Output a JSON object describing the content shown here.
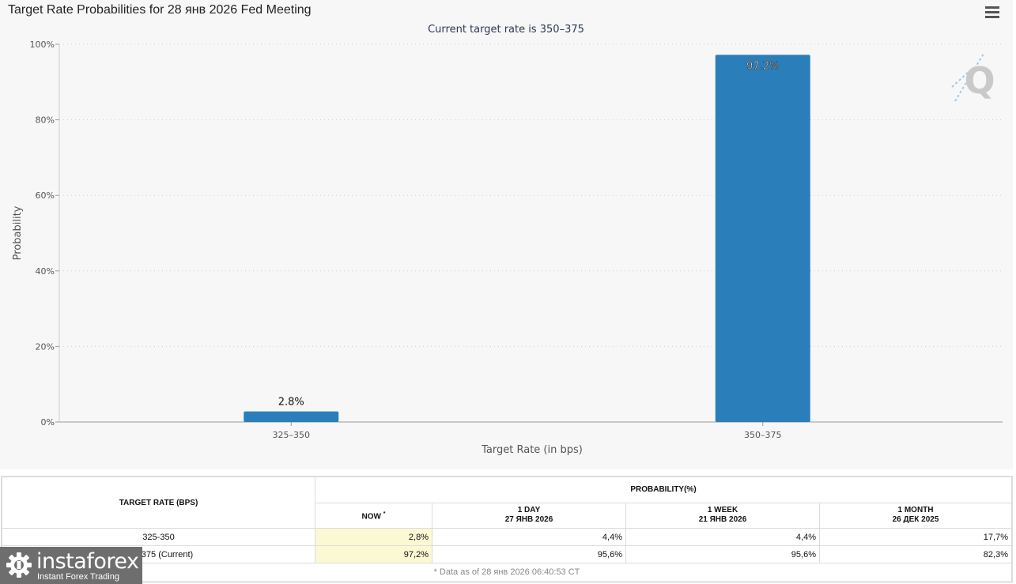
{
  "chart_data": {
    "type": "bar",
    "title": "Target Rate Probabilities for 28 янв 2026 Fed Meeting",
    "subtitle": "Current target rate is 350–375",
    "xlabel": "Target Rate (in bps)",
    "ylabel": "Probability",
    "categories": [
      "325–350",
      "350–375"
    ],
    "values": [
      2.8,
      97.2
    ],
    "data_labels": [
      "2.8%",
      "97.2%"
    ],
    "ylim": [
      0,
      100
    ],
    "yticks": [
      "0%",
      "20%",
      "40%",
      "60%",
      "80%",
      "100%"
    ],
    "grid": true,
    "bar_color": "#2a7fba"
  },
  "table": {
    "header_rate": "TARGET RATE (BPS)",
    "header_prob": "PROBABILITY(%)",
    "col_now": "NOW",
    "col_now_mark": "*",
    "col_day": "1 DAY",
    "col_day_date": "27 ЯНВ 2026",
    "col_week": "1 WEEK",
    "col_week_date": "21 ЯНВ 2026",
    "col_month": "1 MONTH",
    "col_month_date": "26 ДЕК 2025",
    "rows": [
      {
        "rate": "325-350",
        "now": "2,8%",
        "day": "4,4%",
        "week": "4,4%",
        "month": "17,7%"
      },
      {
        "rate": "350-375 (Current)",
        "now": "97,2%",
        "day": "95,6%",
        "week": "95,6%",
        "month": "82,3%"
      }
    ],
    "footnote": "* Data as of 28 янв 2026 06:40:53 CT"
  },
  "logo": {
    "brand": "instaforex",
    "tagline": "Instant Forex Trading",
    "watermark_letter": "Q"
  },
  "icons": {
    "menu": "hamburger-menu-icon"
  }
}
